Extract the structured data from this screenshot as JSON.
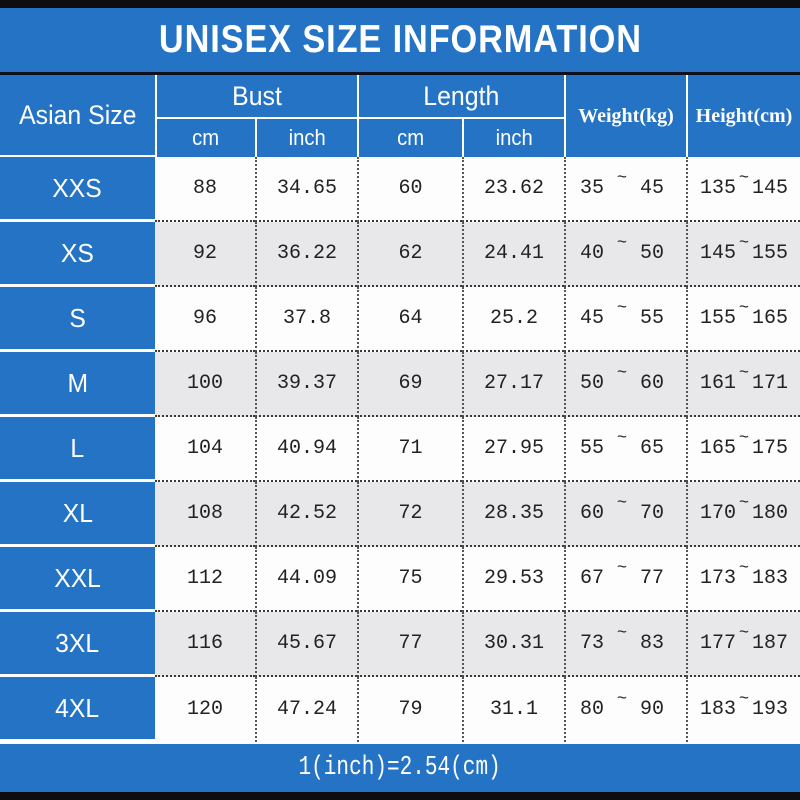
{
  "title_bar": {
    "title": "UNISEX SIZE INFORMATION"
  },
  "colors": {
    "banner_blue": "#2473c4",
    "row_gray": "#e8e8ea",
    "row_white": "#fdfdfd",
    "frame_black": "#0e0e10",
    "text_white": "#ffffff",
    "text_black": "#222222"
  },
  "chart_data": {
    "type": "table",
    "title": "UNISEX SIZE INFORMATION",
    "headers": {
      "asian_size": "Asian Size",
      "bust": "Bust",
      "length": "Length",
      "weight": "Weight(kg)",
      "height": "Height(cm)",
      "bust_cm": "cm",
      "bust_inch": "inch",
      "length_cm": "cm",
      "length_inch": "inch"
    },
    "tilde": "~",
    "rows": [
      {
        "size": "XXS",
        "bust_cm": "88",
        "bust_inch": "34.65",
        "length_cm": "60",
        "length_inch": "23.62",
        "weight_min": "35",
        "weight_max": "45",
        "height_min": "135",
        "height_max": "145"
      },
      {
        "size": "XS",
        "bust_cm": "92",
        "bust_inch": "36.22",
        "length_cm": "62",
        "length_inch": "24.41",
        "weight_min": "40",
        "weight_max": "50",
        "height_min": "145",
        "height_max": "155"
      },
      {
        "size": "S",
        "bust_cm": "96",
        "bust_inch": "37.8",
        "length_cm": "64",
        "length_inch": "25.2",
        "weight_min": "45",
        "weight_max": "55",
        "height_min": "155",
        "height_max": "165"
      },
      {
        "size": "M",
        "bust_cm": "100",
        "bust_inch": "39.37",
        "length_cm": "69",
        "length_inch": "27.17",
        "weight_min": "50",
        "weight_max": "60",
        "height_min": "161",
        "height_max": "171"
      },
      {
        "size": "L",
        "bust_cm": "104",
        "bust_inch": "40.94",
        "length_cm": "71",
        "length_inch": "27.95",
        "weight_min": "55",
        "weight_max": "65",
        "height_min": "165",
        "height_max": "175"
      },
      {
        "size": "XL",
        "bust_cm": "108",
        "bust_inch": "42.52",
        "length_cm": "72",
        "length_inch": "28.35",
        "weight_min": "60",
        "weight_max": "70",
        "height_min": "170",
        "height_max": "180"
      },
      {
        "size": "XXL",
        "bust_cm": "112",
        "bust_inch": "44.09",
        "length_cm": "75",
        "length_inch": "29.53",
        "weight_min": "67",
        "weight_max": "77",
        "height_min": "173",
        "height_max": "183"
      },
      {
        "size": "3XL",
        "bust_cm": "116",
        "bust_inch": "45.67",
        "length_cm": "77",
        "length_inch": "30.31",
        "weight_min": "73",
        "weight_max": "83",
        "height_min": "177",
        "height_max": "187"
      },
      {
        "size": "4XL",
        "bust_cm": "120",
        "bust_inch": "47.24",
        "length_cm": "79",
        "length_inch": "31.1",
        "weight_min": "80",
        "weight_max": "90",
        "height_min": "183",
        "height_max": "193"
      }
    ],
    "footnote": "1(inch)=2.54(cm)"
  }
}
